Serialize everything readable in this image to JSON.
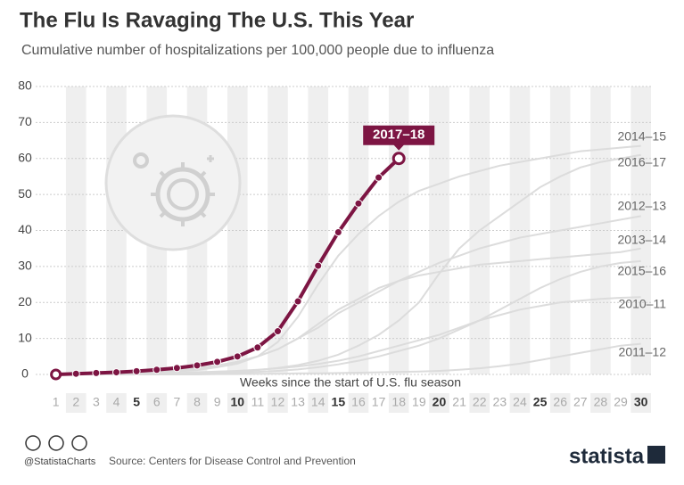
{
  "chart_data": {
    "type": "line",
    "title": "The Flu Is Ravaging The U.S. This Year",
    "subtitle": "Cumulative number of hospitalizations per 100,000 people due to influenza",
    "x_label": "Weeks since the start of U.S. flu season",
    "x": [
      1,
      2,
      3,
      4,
      5,
      6,
      7,
      8,
      9,
      10,
      11,
      12,
      13,
      14,
      15,
      16,
      17,
      18,
      19,
      20,
      21,
      22,
      23,
      24,
      25,
      26,
      27,
      28,
      29,
      30
    ],
    "xlim": [
      0,
      30.5
    ],
    "xticks": [
      1,
      2,
      3,
      4,
      5,
      6,
      7,
      8,
      9,
      10,
      11,
      12,
      13,
      14,
      15,
      16,
      17,
      18,
      19,
      20,
      21,
      22,
      23,
      24,
      25,
      26,
      27,
      28,
      29,
      30
    ],
    "ylim": [
      0,
      80
    ],
    "yticks": [
      0,
      10,
      20,
      30,
      40,
      50,
      60,
      70,
      80
    ],
    "grid": true,
    "highlight_label": "2017–18",
    "series": [
      {
        "name": "2014–15",
        "color": "#dcdcdc",
        "values": [
          0,
          0,
          0.1,
          0.2,
          0.3,
          0.5,
          0.8,
          1.2,
          2,
          3,
          5,
          9,
          16,
          25,
          33,
          39,
          44,
          48,
          51,
          53,
          55,
          56.5,
          58,
          59,
          60,
          61,
          62,
          62.5,
          63,
          63.5
        ]
      },
      {
        "name": "2016–17",
        "color": "#dcdcdc",
        "values": [
          0,
          0,
          0,
          0,
          0.1,
          0.1,
          0.2,
          0.3,
          0.5,
          0.8,
          1.2,
          1.8,
          2.6,
          3.8,
          5.5,
          8,
          11,
          15,
          20,
          28,
          35,
          40,
          44,
          48,
          52,
          55,
          57.5,
          59,
          60,
          61
        ]
      },
      {
        "name": "2012–13",
        "color": "#dcdcdc",
        "values": [
          0,
          0,
          0.1,
          0.2,
          0.4,
          0.6,
          1,
          1.6,
          2.5,
          3.5,
          5,
          7,
          10,
          13,
          17,
          20,
          23,
          26,
          28.5,
          31,
          33,
          35,
          36.5,
          38,
          39,
          40,
          41,
          42,
          43,
          44
        ]
      },
      {
        "name": "2013–14",
        "color": "#dcdcdc",
        "values": [
          0,
          0,
          0.1,
          0.2,
          0.4,
          0.7,
          1.1,
          1.7,
          2.5,
          3.5,
          5,
          7,
          10,
          14,
          18,
          21,
          24,
          26,
          27.5,
          28.5,
          29.5,
          30.5,
          31,
          31.5,
          32,
          32.5,
          33,
          33.5,
          34,
          35
        ]
      },
      {
        "name": "2015–16",
        "color": "#dcdcdc",
        "values": [
          0,
          0,
          0,
          0,
          0,
          0.1,
          0.1,
          0.2,
          0.3,
          0.5,
          0.7,
          1,
          1.4,
          2,
          2.8,
          3.8,
          5,
          6.5,
          8,
          10,
          12.5,
          15,
          18,
          21,
          24,
          26.5,
          28.5,
          30,
          31,
          31.5
        ]
      },
      {
        "name": "2010–11",
        "color": "#dcdcdc",
        "values": [
          0,
          0,
          0,
          0.1,
          0.2,
          0.3,
          0.4,
          0.6,
          0.8,
          1,
          1.3,
          1.7,
          2.2,
          2.9,
          3.8,
          5,
          6.5,
          8,
          9.5,
          11,
          13,
          15,
          16.5,
          18,
          19,
          20,
          20.5,
          21,
          21.3,
          21.5
        ]
      },
      {
        "name": "2011–12",
        "color": "#dcdcdc",
        "values": [
          0,
          0,
          0,
          0,
          0,
          0,
          0,
          0,
          0.1,
          0.1,
          0.2,
          0.2,
          0.3,
          0.3,
          0.4,
          0.5,
          0.6,
          0.7,
          0.8,
          1,
          1.3,
          1.7,
          2.3,
          3,
          4,
          5,
          6,
          7,
          8,
          8.5
        ]
      },
      {
        "name": "2017–18",
        "color": "#7d1543",
        "values": [
          0,
          0.2,
          0.4,
          0.6,
          0.9,
          1.3,
          1.8,
          2.5,
          3.5,
          5,
          7.5,
          12,
          20.3,
          30.2,
          39.5,
          47.5,
          54.7,
          60,
          null,
          null,
          null,
          null,
          null,
          null,
          null,
          null,
          null,
          null,
          null,
          null
        ]
      }
    ]
  },
  "footer": {
    "handle": "@StatistaCharts",
    "source": "Source: Centers for Disease Control and Prevention",
    "brand": "statista"
  }
}
